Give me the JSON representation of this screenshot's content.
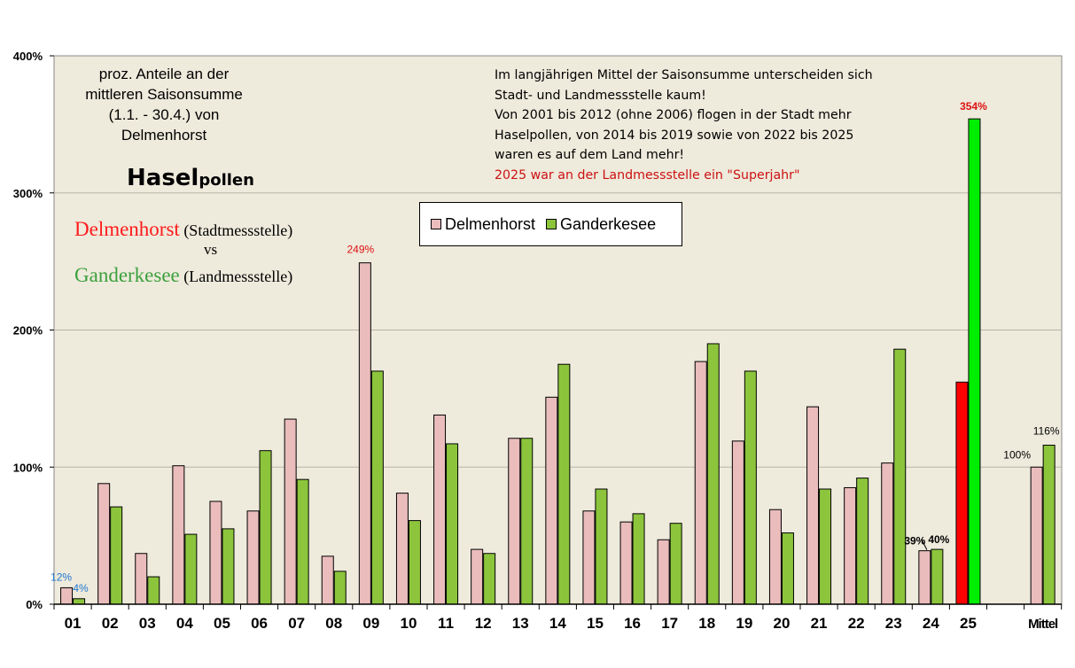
{
  "titleblock": {
    "line1": "proz. Anteile an der",
    "line2": "mittleren Saisonsumme",
    "line3": "(1.1. - 30.4.) von",
    "line4": "Delmenhorst",
    "hasel_big": "Hasel",
    "hasel_small": "pollen"
  },
  "stations": {
    "city1": "Delmenhorst",
    "type1": "(Stadtmessstelle)",
    "vs": "vs",
    "city2": "Ganderkesee",
    "type2": "(Landmessstelle)"
  },
  "note": {
    "line1": "Im langjährigen  Mittel der Saisonsumme  unterscheiden  sich",
    "line2": "Stadt- und Landmessstelle kaum!",
    "line3": "Von 2001 bis 2012 (ohne 2006) flogen in der Stadt mehr",
    "line4": "Haselpollen, von 2014 bis 2019 sowie von 2022 bis 2025",
    "line5": "waren es auf dem Land mehr!",
    "line6": "2025 war an der Landmessstelle ein \"Superjahr\""
  },
  "colors": {
    "delmenhorst": "#eabcbc",
    "ganderkesee": "#8cc53c",
    "highlight_delmenhorst": "#ff0000",
    "highlight_ganderkesee": "#00ee00",
    "plot_bg": "#eeeadc"
  },
  "chart_data": {
    "type": "bar",
    "categories": [
      "01",
      "02",
      "03",
      "04",
      "05",
      "06",
      "07",
      "08",
      "09",
      "10",
      "11",
      "12",
      "13",
      "14",
      "15",
      "16",
      "17",
      "18",
      "19",
      "20",
      "21",
      "22",
      "23",
      "24",
      "25",
      "",
      "Mittel"
    ],
    "series": [
      {
        "name": "Delmenhorst",
        "values": [
          12,
          88,
          37,
          101,
          75,
          68,
          135,
          35,
          249,
          81,
          138,
          40,
          121,
          151,
          68,
          60,
          47,
          177,
          119,
          69,
          144,
          85,
          103,
          39,
          162,
          null,
          100
        ]
      },
      {
        "name": "Ganderkesee",
        "values": [
          4,
          71,
          20,
          51,
          55,
          112,
          91,
          24,
          170,
          61,
          117,
          37,
          121,
          175,
          84,
          66,
          59,
          190,
          170,
          52,
          84,
          92,
          186,
          40,
          354,
          null,
          116
        ]
      }
    ],
    "ylim": [
      0,
      400
    ],
    "yticks": [
      "0%",
      "100%",
      "200%",
      "300%",
      "400%"
    ],
    "data_labels": [
      {
        "label": "12%",
        "color": "#1f77d0"
      },
      {
        "label": "4%",
        "color": "#1f77d0"
      },
      {
        "label": "249%",
        "color": "#dd1111"
      },
      {
        "label": "39%",
        "color": "#000000"
      },
      {
        "label": "40%",
        "color": "#000000"
      },
      {
        "label": "354%",
        "color": "#dd1111"
      },
      {
        "label": "100%",
        "color": "#000000"
      },
      {
        "label": "116%",
        "color": "#000000"
      }
    ],
    "grid": true,
    "legend": "top-center"
  }
}
